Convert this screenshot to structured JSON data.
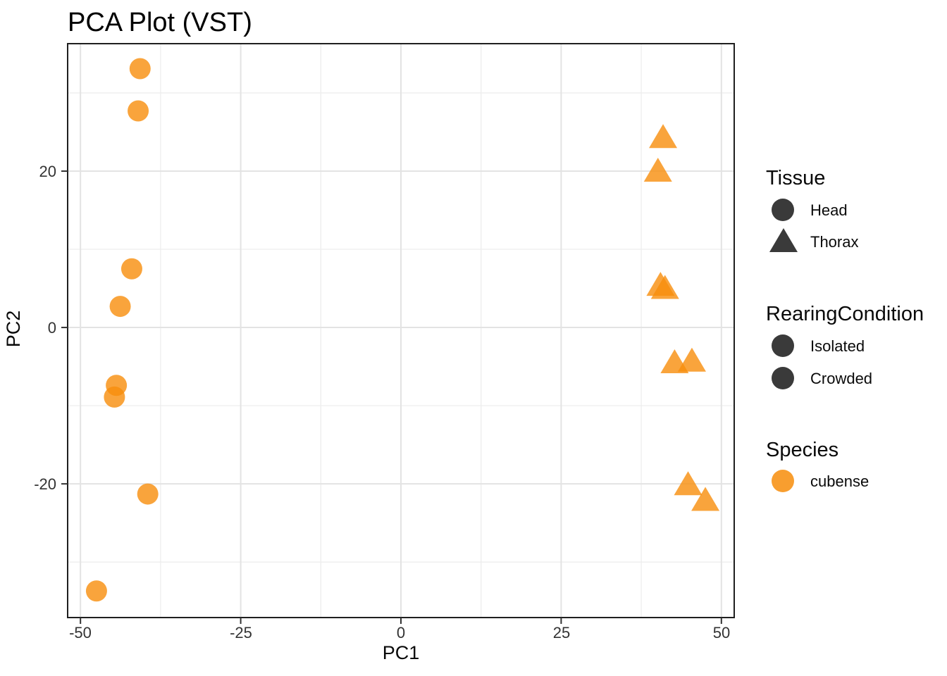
{
  "chart_data": {
    "type": "scatter",
    "title": "PCA Plot (VST)",
    "xlabel": "PC1",
    "ylabel": "PC2",
    "xlim": [
      -52,
      52
    ],
    "ylim": [
      -37.1,
      36.3
    ],
    "x_ticks": [
      -50,
      -25,
      0,
      25,
      50
    ],
    "x_minor_ticks": [
      -37.5,
      -12.5,
      12.5,
      37.5
    ],
    "y_ticks": [
      20,
      0,
      -20
    ],
    "y_minor_ticks": [
      30,
      10,
      -10,
      -30
    ],
    "grid": "major+minor on, light grey, white panel, black panel border",
    "legend_position": "right",
    "point_color": "#F78D0B",
    "point_opacity": 0.8,
    "series": [
      {
        "name": "Head",
        "shape": "circle",
        "points": [
          [
            -40.7,
            33.1
          ],
          [
            -41.0,
            27.7
          ],
          [
            -42.0,
            7.5
          ],
          [
            -43.8,
            2.7
          ],
          [
            -44.4,
            -7.4
          ],
          [
            -44.7,
            -8.9
          ],
          [
            -39.5,
            -21.3
          ],
          [
            -47.5,
            -33.7
          ]
        ]
      },
      {
        "name": "Thorax",
        "shape": "triangle",
        "points": [
          [
            40.9,
            24.3
          ],
          [
            40.1,
            20.0
          ],
          [
            40.5,
            5.4
          ],
          [
            41.2,
            5.0
          ],
          [
            42.7,
            -4.5
          ],
          [
            45.4,
            -4.3
          ],
          [
            44.8,
            -20.1
          ],
          [
            47.5,
            -22.1
          ]
        ]
      }
    ]
  },
  "legend": {
    "groups": [
      {
        "title": "Tissue",
        "items": [
          {
            "label": "Head",
            "shape": "circle",
            "color": "#3A3A3A"
          },
          {
            "label": "Thorax",
            "shape": "triangle",
            "color": "#3A3A3A"
          }
        ]
      },
      {
        "title": "RearingCondition",
        "items": [
          {
            "label": "Isolated",
            "shape": "circle",
            "color": "#3A3A3A"
          },
          {
            "label": "Crowded",
            "shape": "circle",
            "color": "#3A3A3A"
          }
        ]
      },
      {
        "title": "Species",
        "items": [
          {
            "label": "cubense",
            "shape": "circle",
            "color": "#F78D0B"
          }
        ]
      }
    ]
  },
  "colors": {
    "point_orange": "#F78D0B",
    "legend_dark": "#3A3A3A",
    "grid_major": "#E3E3E3",
    "grid_minor": "#EDEDED",
    "panel_border": "#1F1F1F",
    "tick_mark": "#333333",
    "tick_text": "#333333",
    "background": "#FFFFFF"
  }
}
